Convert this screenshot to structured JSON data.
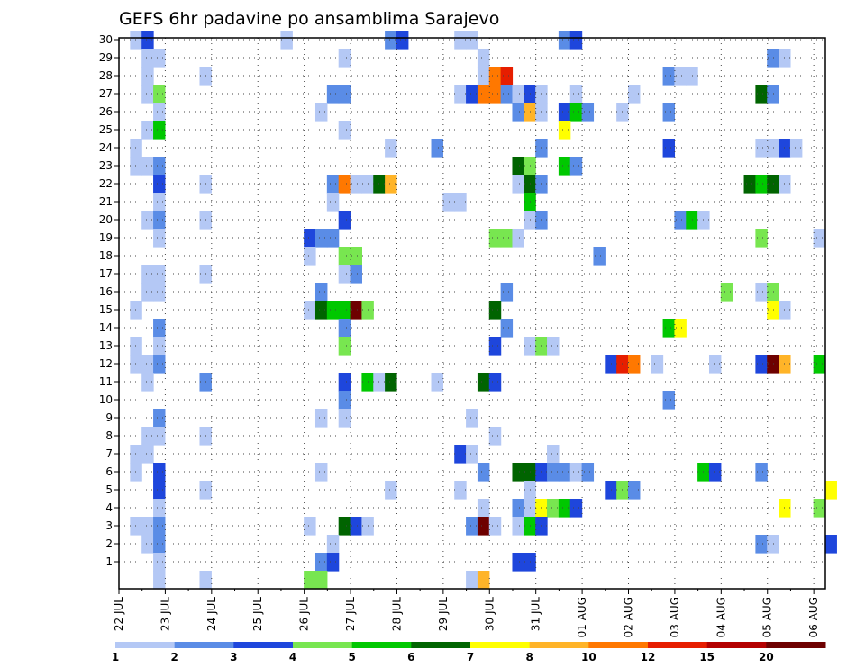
{
  "chart_data": {
    "type": "heatmap",
    "title": "GEFS 6hr padavine po ansamblima Sarajevo",
    "xlabel": "",
    "ylabel": "",
    "x_ticks": [
      "22 JUL",
      "23 JUL",
      "24 JUL",
      "25 JUL",
      "26 JUL",
      "27 JUL",
      "28 JUL",
      "29 JUL",
      "30 JUL",
      "31 JUL",
      "01 AUG",
      "02 AUG",
      "03 AUG",
      "04 AUG",
      "05 AUG",
      "06 AUG"
    ],
    "y_ticks": [
      1,
      2,
      3,
      4,
      5,
      6,
      7,
      8,
      9,
      10,
      11,
      12,
      13,
      14,
      15,
      16,
      17,
      18,
      19,
      20,
      21,
      22,
      23,
      24,
      25,
      26,
      27,
      28,
      29,
      30
    ],
    "xlim": [
      0,
      61
    ],
    "ylim": [
      0,
      30
    ],
    "grid": true,
    "legend_position": "bottom",
    "legend": {
      "labels": [
        "1",
        "2",
        "3",
        "4",
        "5",
        "6",
        "7",
        "8",
        "10",
        "12",
        "15",
        "20"
      ],
      "colors": [
        "#b4c8f5",
        "#5a8ce6",
        "#1e46dc",
        "#78e650",
        "#00c800",
        "#006400",
        "#ffff00",
        "#ffb428",
        "#ff7800",
        "#e61e00",
        "#b40000",
        "#6e0000"
      ]
    },
    "cells": [
      [
        1,
        30,
        1
      ],
      [
        2,
        30,
        3
      ],
      [
        14,
        30,
        1
      ],
      [
        23,
        30,
        2
      ],
      [
        24,
        30,
        3
      ],
      [
        29,
        30,
        1
      ],
      [
        30,
        30,
        1
      ],
      [
        38,
        30,
        2
      ],
      [
        39,
        30,
        3
      ],
      [
        2,
        29,
        1
      ],
      [
        3,
        29,
        1
      ],
      [
        19,
        29,
        1
      ],
      [
        31,
        29,
        1
      ],
      [
        56,
        29,
        2
      ],
      [
        57,
        29,
        1
      ],
      [
        2,
        28,
        1
      ],
      [
        7,
        28,
        1
      ],
      [
        31,
        28,
        1
      ],
      [
        32,
        28,
        9
      ],
      [
        33,
        28,
        10
      ],
      [
        47,
        28,
        2
      ],
      [
        48,
        28,
        1
      ],
      [
        49,
        28,
        1
      ],
      [
        2,
        27,
        1
      ],
      [
        3,
        27,
        4
      ],
      [
        18,
        27,
        2
      ],
      [
        19,
        27,
        2
      ],
      [
        29,
        27,
        1
      ],
      [
        30,
        27,
        3
      ],
      [
        31,
        27,
        9
      ],
      [
        32,
        27,
        9
      ],
      [
        33,
        27,
        2
      ],
      [
        34,
        27,
        1
      ],
      [
        35,
        27,
        3
      ],
      [
        36,
        27,
        1
      ],
      [
        39,
        27,
        1
      ],
      [
        44,
        27,
        1
      ],
      [
        55,
        27,
        6
      ],
      [
        56,
        27,
        2
      ],
      [
        3,
        26,
        1
      ],
      [
        17,
        26,
        1
      ],
      [
        34,
        26,
        2
      ],
      [
        35,
        26,
        8
      ],
      [
        36,
        26,
        1
      ],
      [
        38,
        26,
        3
      ],
      [
        39,
        26,
        5
      ],
      [
        40,
        26,
        2
      ],
      [
        43,
        26,
        1
      ],
      [
        47,
        26,
        2
      ],
      [
        2,
        25,
        1
      ],
      [
        3,
        25,
        5
      ],
      [
        19,
        25,
        1
      ],
      [
        38,
        25,
        7
      ],
      [
        1,
        24,
        1
      ],
      [
        23,
        24,
        1
      ],
      [
        27,
        24,
        2
      ],
      [
        36,
        24,
        2
      ],
      [
        47,
        24,
        3
      ],
      [
        55,
        24,
        1
      ],
      [
        56,
        24,
        1
      ],
      [
        57,
        24,
        3
      ],
      [
        58,
        24,
        1
      ],
      [
        1,
        23,
        1
      ],
      [
        2,
        23,
        1
      ],
      [
        3,
        23,
        2
      ],
      [
        34,
        23,
        6
      ],
      [
        35,
        23,
        4
      ],
      [
        38,
        23,
        5
      ],
      [
        39,
        23,
        2
      ],
      [
        3,
        22,
        3
      ],
      [
        7,
        22,
        1
      ],
      [
        18,
        22,
        2
      ],
      [
        19,
        22,
        9
      ],
      [
        20,
        22,
        1
      ],
      [
        21,
        22,
        1
      ],
      [
        22,
        22,
        6
      ],
      [
        23,
        22,
        8
      ],
      [
        34,
        22,
        1
      ],
      [
        35,
        22,
        6
      ],
      [
        36,
        22,
        2
      ],
      [
        54,
        22,
        6
      ],
      [
        55,
        22,
        5
      ],
      [
        56,
        22,
        6
      ],
      [
        57,
        22,
        1
      ],
      [
        3,
        21,
        1
      ],
      [
        18,
        21,
        1
      ],
      [
        28,
        21,
        1
      ],
      [
        29,
        21,
        1
      ],
      [
        35,
        21,
        5
      ],
      [
        2,
        20,
        1
      ],
      [
        3,
        20,
        2
      ],
      [
        7,
        20,
        1
      ],
      [
        19,
        20,
        3
      ],
      [
        35,
        20,
        1
      ],
      [
        36,
        20,
        2
      ],
      [
        48,
        20,
        2
      ],
      [
        49,
        20,
        5
      ],
      [
        50,
        20,
        1
      ],
      [
        3,
        19,
        1
      ],
      [
        16,
        19,
        3
      ],
      [
        17,
        19,
        2
      ],
      [
        18,
        19,
        2
      ],
      [
        32,
        19,
        4
      ],
      [
        33,
        19,
        4
      ],
      [
        34,
        19,
        1
      ],
      [
        55,
        19,
        4
      ],
      [
        60,
        19,
        1
      ],
      [
        16,
        18,
        1
      ],
      [
        19,
        18,
        4
      ],
      [
        20,
        18,
        4
      ],
      [
        41,
        18,
        2
      ],
      [
        2,
        17,
        1
      ],
      [
        3,
        17,
        1
      ],
      [
        7,
        17,
        1
      ],
      [
        19,
        17,
        1
      ],
      [
        20,
        17,
        2
      ],
      [
        2,
        16,
        1
      ],
      [
        3,
        16,
        1
      ],
      [
        17,
        16,
        2
      ],
      [
        33,
        16,
        2
      ],
      [
        52,
        16,
        4
      ],
      [
        55,
        16,
        1
      ],
      [
        56,
        16,
        4
      ],
      [
        1,
        15,
        1
      ],
      [
        16,
        15,
        1
      ],
      [
        17,
        15,
        6
      ],
      [
        18,
        15,
        5
      ],
      [
        19,
        15,
        5
      ],
      [
        20,
        15,
        12
      ],
      [
        21,
        15,
        4
      ],
      [
        32,
        15,
        6
      ],
      [
        56,
        15,
        7
      ],
      [
        57,
        15,
        1
      ],
      [
        3,
        14,
        2
      ],
      [
        19,
        14,
        2
      ],
      [
        33,
        14,
        2
      ],
      [
        47,
        14,
        5
      ],
      [
        48,
        14,
        7
      ],
      [
        1,
        13,
        1
      ],
      [
        3,
        13,
        1
      ],
      [
        19,
        13,
        4
      ],
      [
        32,
        13,
        3
      ],
      [
        35,
        13,
        1
      ],
      [
        36,
        13,
        4
      ],
      [
        37,
        13,
        1
      ],
      [
        1,
        12,
        1
      ],
      [
        2,
        12,
        1
      ],
      [
        3,
        12,
        2
      ],
      [
        42,
        12,
        3
      ],
      [
        43,
        12,
        10
      ],
      [
        44,
        12,
        9
      ],
      [
        46,
        12,
        1
      ],
      [
        51,
        12,
        1
      ],
      [
        55,
        12,
        3
      ],
      [
        56,
        12,
        12
      ],
      [
        57,
        12,
        8
      ],
      [
        60,
        12,
        5
      ],
      [
        2,
        11,
        1
      ],
      [
        7,
        11,
        2
      ],
      [
        19,
        11,
        3
      ],
      [
        21,
        11,
        5
      ],
      [
        22,
        11,
        1
      ],
      [
        23,
        11,
        6
      ],
      [
        27,
        11,
        1
      ],
      [
        31,
        11,
        6
      ],
      [
        32,
        11,
        3
      ],
      [
        19,
        10,
        2
      ],
      [
        47,
        10,
        2
      ],
      [
        3,
        9,
        2
      ],
      [
        17,
        9,
        1
      ],
      [
        19,
        9,
        1
      ],
      [
        30,
        9,
        1
      ],
      [
        2,
        8,
        1
      ],
      [
        3,
        8,
        1
      ],
      [
        7,
        8,
        1
      ],
      [
        32,
        8,
        1
      ],
      [
        1,
        7,
        1
      ],
      [
        2,
        7,
        1
      ],
      [
        29,
        7,
        3
      ],
      [
        30,
        7,
        1
      ],
      [
        37,
        7,
        1
      ],
      [
        1,
        6,
        1
      ],
      [
        3,
        6,
        3
      ],
      [
        17,
        6,
        1
      ],
      [
        31,
        6,
        2
      ],
      [
        34,
        6,
        6
      ],
      [
        35,
        6,
        6
      ],
      [
        36,
        6,
        3
      ],
      [
        37,
        6,
        2
      ],
      [
        38,
        6,
        2
      ],
      [
        39,
        6,
        1
      ],
      [
        40,
        6,
        2
      ],
      [
        50,
        6,
        5
      ],
      [
        51,
        6,
        3
      ],
      [
        55,
        6,
        2
      ],
      [
        3,
        5,
        3
      ],
      [
        7,
        5,
        1
      ],
      [
        23,
        5,
        1
      ],
      [
        29,
        5,
        1
      ],
      [
        35,
        5,
        1
      ],
      [
        42,
        5,
        3
      ],
      [
        43,
        5,
        4
      ],
      [
        44,
        5,
        2
      ],
      [
        61,
        5,
        7
      ],
      [
        3,
        4,
        1
      ],
      [
        31,
        4,
        1
      ],
      [
        34,
        4,
        2
      ],
      [
        35,
        4,
        1
      ],
      [
        36,
        4,
        7
      ],
      [
        37,
        4,
        4
      ],
      [
        38,
        4,
        5
      ],
      [
        39,
        4,
        3
      ],
      [
        57,
        4,
        7
      ],
      [
        60,
        4,
        4
      ],
      [
        1,
        3,
        1
      ],
      [
        2,
        3,
        1
      ],
      [
        3,
        3,
        2
      ],
      [
        16,
        3,
        1
      ],
      [
        19,
        3,
        6
      ],
      [
        20,
        3,
        3
      ],
      [
        21,
        3,
        1
      ],
      [
        30,
        3,
        2
      ],
      [
        31,
        3,
        12
      ],
      [
        32,
        3,
        1
      ],
      [
        34,
        3,
        1
      ],
      [
        35,
        3,
        5
      ],
      [
        36,
        3,
        3
      ],
      [
        2,
        2,
        1
      ],
      [
        3,
        2,
        2
      ],
      [
        18,
        2,
        1
      ],
      [
        55,
        2,
        2
      ],
      [
        56,
        2,
        1
      ],
      [
        61,
        2,
        3
      ],
      [
        3,
        1,
        1
      ],
      [
        17,
        1,
        2
      ],
      [
        18,
        1,
        3
      ],
      [
        34,
        1,
        3
      ],
      [
        35,
        1,
        3
      ],
      [
        3,
        0,
        1
      ],
      [
        7,
        0,
        1
      ],
      [
        16,
        0,
        4
      ],
      [
        17,
        0,
        4
      ],
      [
        30,
        0,
        1
      ],
      [
        31,
        0,
        8
      ]
    ]
  }
}
